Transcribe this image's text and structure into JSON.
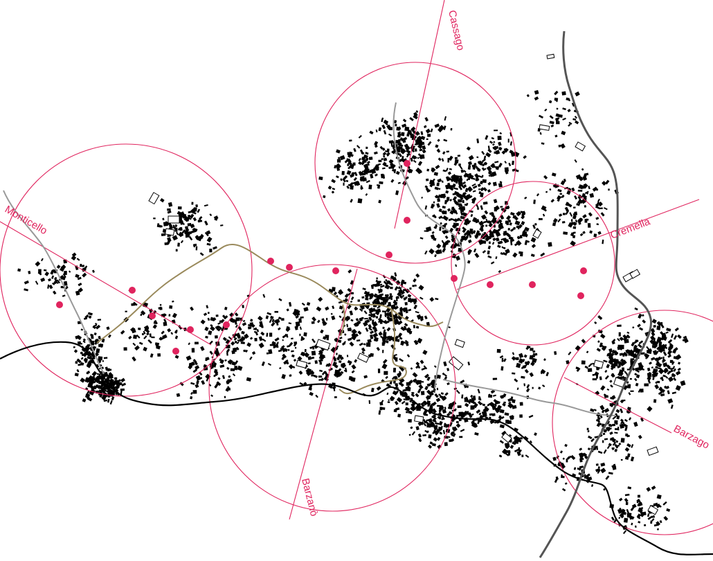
{
  "map": {
    "colors": {
      "background": "#ffffff",
      "buildings": "#000000",
      "main_road": "#000000",
      "secondary_road": "#555555",
      "minor_road": "#999999",
      "path": "#9a8a5c",
      "catchment": "#e0245e",
      "points": "#e0245e",
      "labels": "#e0245e"
    },
    "labels": {
      "monticello": "Monticello",
      "cassago": "Cassago",
      "cremella": "Cremella",
      "barzago": "Barzago",
      "barzano": "Barzanò"
    },
    "point_count": 15,
    "catchment_area_count": 5
  }
}
